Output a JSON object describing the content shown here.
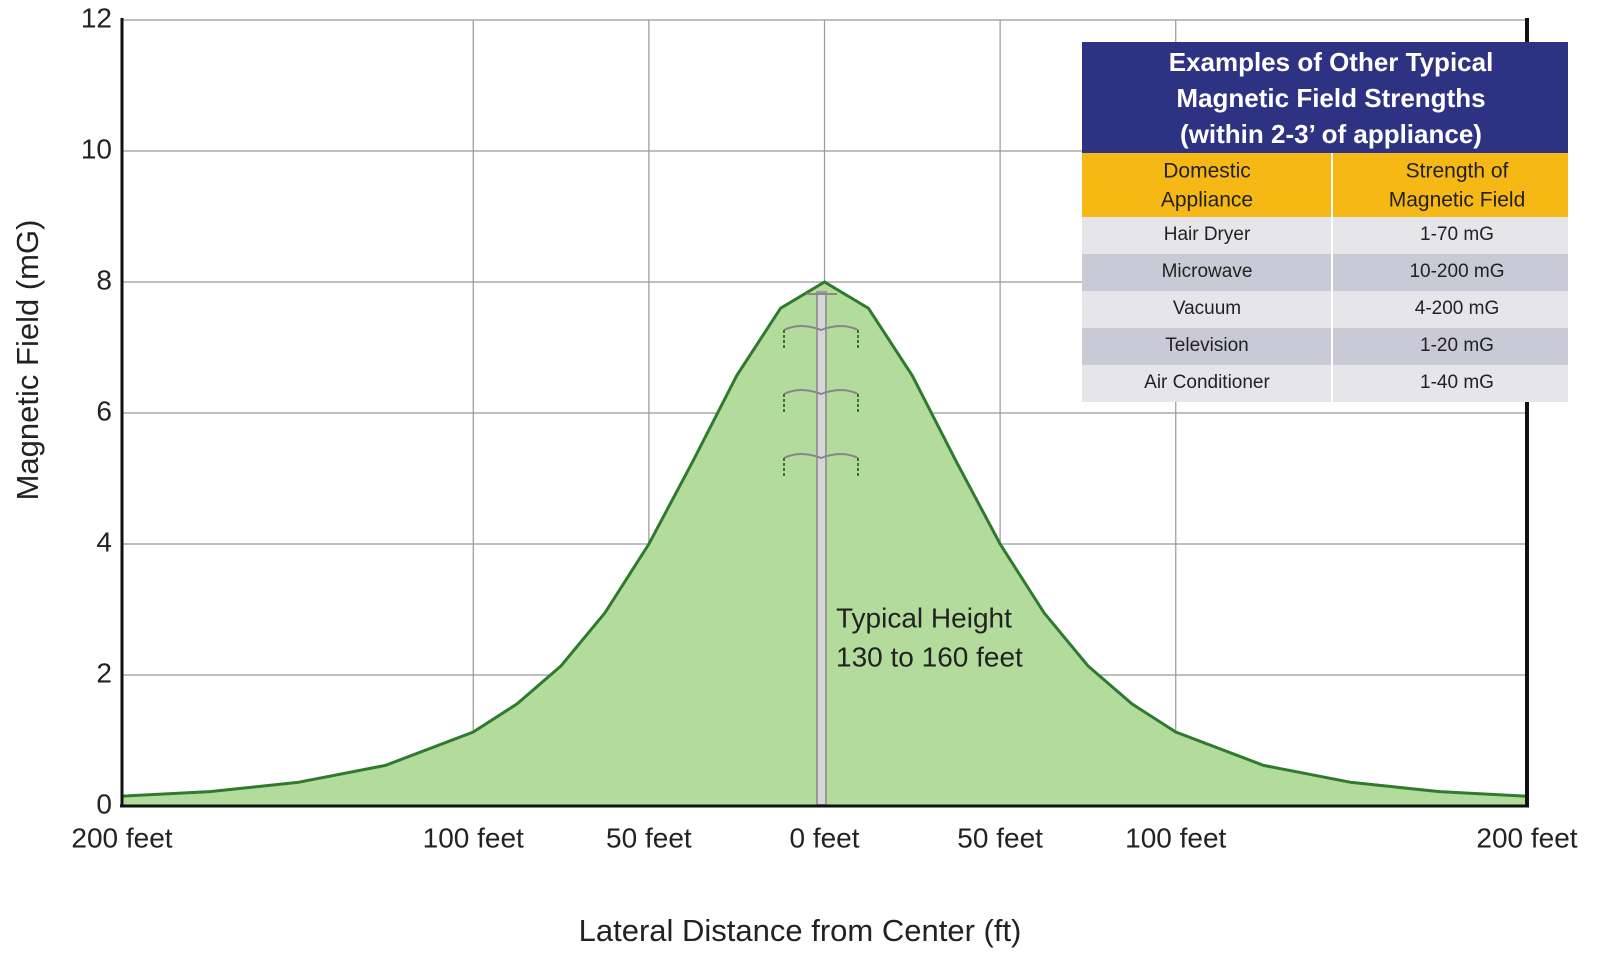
{
  "chart_data": {
    "type": "area",
    "ylabel": "Magnetic Field (mG)",
    "xlabel": "Lateral Distance from Center (ft)",
    "annotation": [
      "Typical Height",
      "130 to 160 feet"
    ],
    "x": [
      -200,
      -175,
      -150,
      -125,
      -100,
      -87.5,
      -75,
      -62.5,
      -50,
      -37.5,
      -25,
      -12.5,
      0,
      12.5,
      25,
      37.5,
      50,
      62.5,
      75,
      87.5,
      100,
      125,
      150,
      175,
      200
    ],
    "values": [
      0.15,
      0.22,
      0.36,
      0.62,
      1.13,
      1.56,
      2.14,
      2.95,
      4.0,
      5.26,
      6.57,
      7.6,
      8.0,
      7.6,
      6.57,
      5.26,
      4.0,
      2.95,
      2.14,
      1.56,
      1.13,
      0.62,
      0.36,
      0.22,
      0.15
    ],
    "color": "#b3dc9c",
    "line_color": "#2f7a2f",
    "xlim": [
      -200,
      200
    ],
    "xticks": [
      {
        "value": -200,
        "label": "200 feet"
      },
      {
        "value": -100,
        "label": "100 feet"
      },
      {
        "value": -50,
        "label": "50 feet"
      },
      {
        "value": 0,
        "label": "0 feet"
      },
      {
        "value": 50,
        "label": "50 feet"
      },
      {
        "value": 100,
        "label": "100 feet"
      },
      {
        "value": 200,
        "label": "200 feet"
      }
    ],
    "ylim": [
      0,
      12
    ],
    "yticks": [
      0,
      2,
      4,
      6,
      8,
      10,
      12
    ],
    "grid": true
  },
  "table": {
    "title": [
      "Examples of Other Typical",
      "Magnetic Field Strengths",
      "(within 2-3’ of appliance)"
    ],
    "header": [
      [
        "Domestic",
        "Appliance"
      ],
      [
        "Strength of",
        "Magnetic Field"
      ]
    ],
    "rows": [
      [
        "Hair Dryer",
        "1-70 mG"
      ],
      [
        "Microwave",
        "10-200 mG"
      ],
      [
        "Vacuum",
        "4-200 mG"
      ],
      [
        "Television",
        "1-20 mG"
      ],
      [
        "Air Conditioner",
        "1-40 mG"
      ]
    ]
  }
}
